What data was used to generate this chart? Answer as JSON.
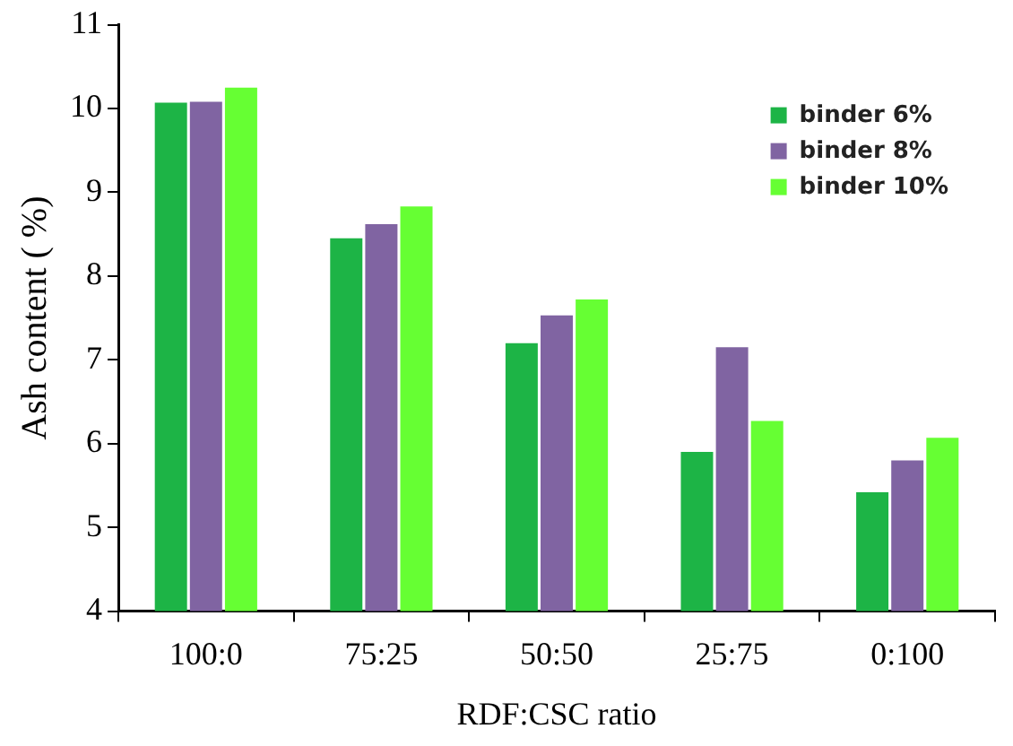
{
  "chart_data": {
    "type": "bar",
    "xlabel": "RDF:CSC ratio",
    "ylabel": "Ash content ( %)",
    "categories": [
      "100:0",
      "75:25",
      "50:50",
      "25:75",
      "0:100"
    ],
    "series": [
      {
        "name": "binder 6%",
        "color": "#1db446",
        "values": [
          10.07,
          8.45,
          7.2,
          5.9,
          5.42
        ]
      },
      {
        "name": "binder 8%",
        "color": "#8064a2",
        "values": [
          10.08,
          8.62,
          7.53,
          7.15,
          5.8
        ]
      },
      {
        "name": "binder 10%",
        "color": "#66ff33",
        "values": [
          10.25,
          8.83,
          7.72,
          6.27,
          6.07
        ]
      }
    ],
    "ylim": [
      4,
      11
    ],
    "yticks": [
      4,
      5,
      6,
      7,
      8,
      9,
      10,
      11
    ],
    "grid": false,
    "legend": "top right"
  }
}
